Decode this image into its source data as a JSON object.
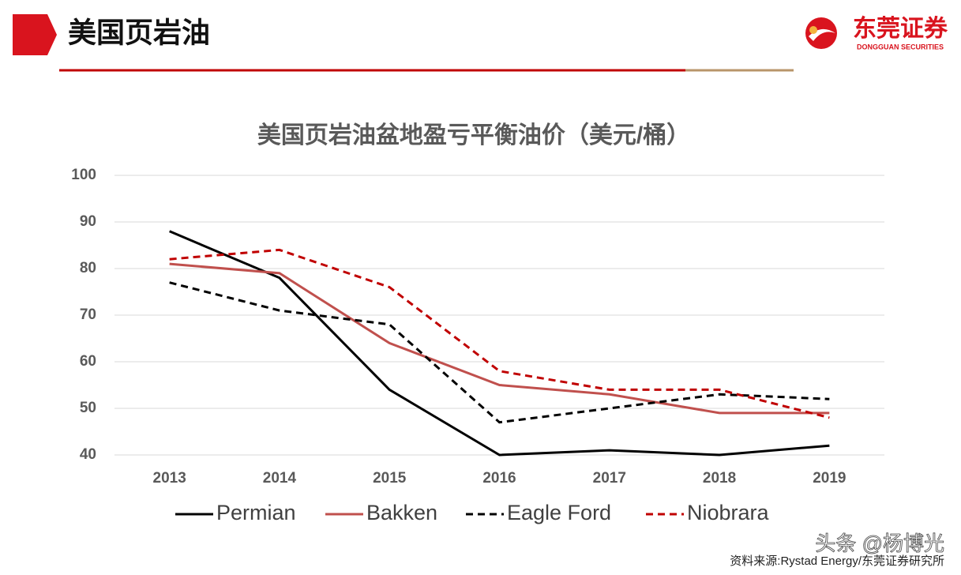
{
  "header": {
    "title": "美国页岩油",
    "logo_name": "东莞证券",
    "logo_subtitle": "DONGGUAN SECURITIES"
  },
  "chart_data": {
    "type": "line",
    "title": "美国页岩油盆地盈亏平衡油价（美元/桶）",
    "categories": [
      "2013",
      "2014",
      "2015",
      "2016",
      "2017",
      "2018",
      "2019"
    ],
    "series": [
      {
        "name": "Permian",
        "color": "#000000",
        "line_style": "solid",
        "values": [
          88,
          78,
          54,
          40,
          41,
          40,
          42
        ]
      },
      {
        "name": "Bakken",
        "color": "#c0504d",
        "line_style": "solid",
        "values": [
          81,
          79,
          64,
          55,
          53,
          49,
          49
        ]
      },
      {
        "name": "Eagle Ford",
        "color": "#000000",
        "line_style": "dashed",
        "values": [
          77,
          71,
          68,
          47,
          50,
          53,
          52
        ]
      },
      {
        "name": "Niobrara",
        "color": "#c00000",
        "line_style": "dashed",
        "values": [
          82,
          84,
          76,
          58,
          54,
          54,
          48
        ]
      }
    ],
    "ylim": [
      40,
      100
    ],
    "yticks": [
      40,
      50,
      60,
      70,
      80,
      90,
      100
    ],
    "grid": true,
    "legend": "bottom"
  },
  "source": "资料来源:Rystad Energy/东莞证券研究所",
  "watermark": "头条 @杨博光"
}
